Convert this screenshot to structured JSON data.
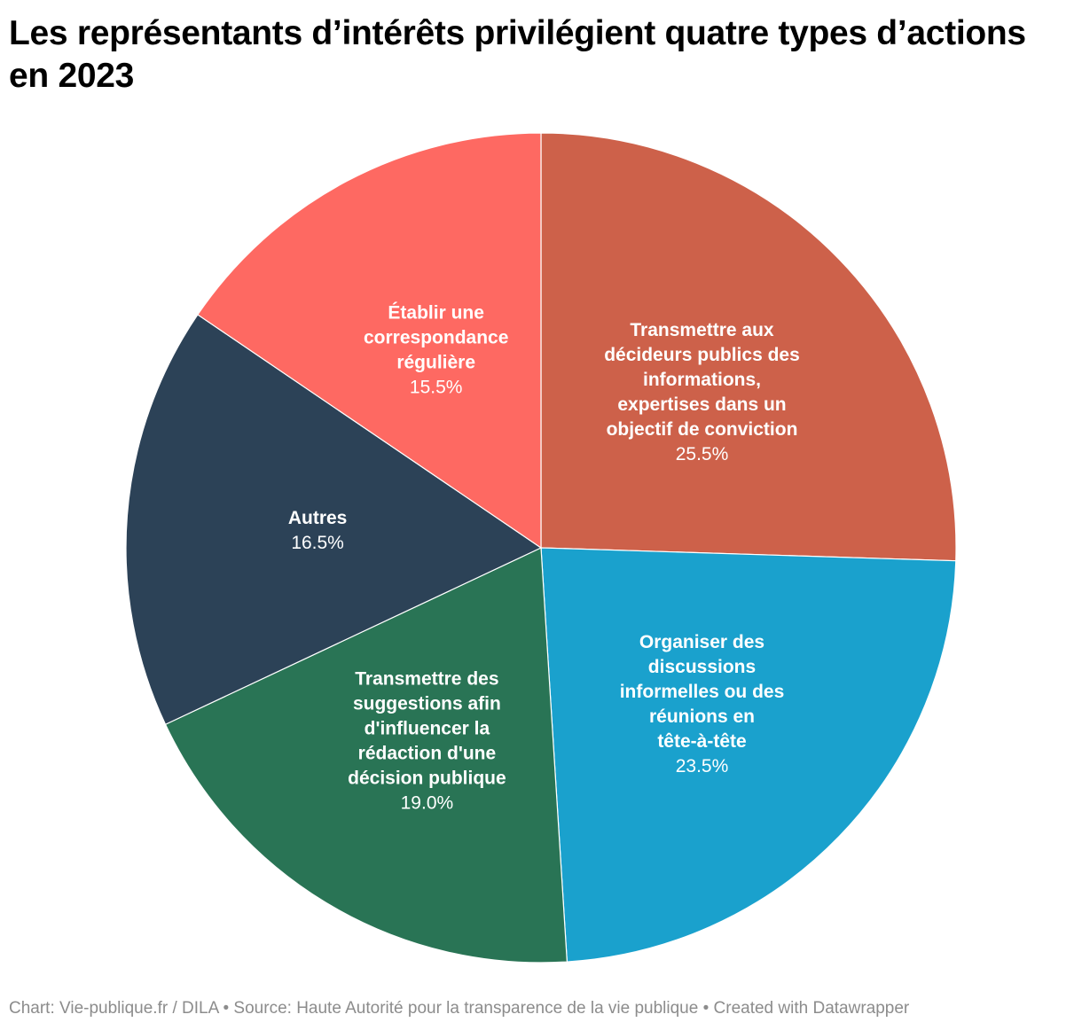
{
  "title": "Les représentants d’intérêts privilégient quatre types d’actions en 2023",
  "footer": "Chart: Vie-publique.fr / DILA • Source: Haute Autorité pour la transparence de la vie publique • Created with Datawrapper",
  "chart_data": {
    "type": "pie",
    "title": "Les représentants d’intérêts privilégient quatre types d’actions en 2023",
    "start_angle_deg": 0,
    "direction": "clockwise",
    "slices": [
      {
        "label": "Transmettre aux décideurs publics des informations, expertises dans un objectif de conviction",
        "label_lines": [
          "Transmettre aux",
          "décideurs publics des",
          "informations,",
          "expertises dans un",
          "objectif de conviction"
        ],
        "value": 25.5,
        "value_label": "25.5%",
        "color": "#cd614a"
      },
      {
        "label": "Organiser des discussions informelles ou des réunions en tête-à-tête",
        "label_lines": [
          "Organiser des",
          "discussions",
          "informelles ou des",
          "réunions en",
          "tête-à-tête"
        ],
        "value": 23.5,
        "value_label": "23.5%",
        "color": "#1aa1cd"
      },
      {
        "label": "Transmettre des suggestions afin d'influencer la rédaction d'une décision publique",
        "label_lines": [
          "Transmettre des",
          "suggestions afin",
          "d'influencer la",
          "rédaction d'une",
          "décision publique"
        ],
        "value": 19.0,
        "value_label": "19.0%",
        "color": "#297455"
      },
      {
        "label": "Autres",
        "label_lines": [
          "Autres"
        ],
        "value": 16.5,
        "value_label": "16.5%",
        "color": "#2c4257"
      },
      {
        "label": "Établir une correspondance régulière",
        "label_lines": [
          "Établir une",
          "correspondance",
          "régulière"
        ],
        "value": 15.5,
        "value_label": "15.5%",
        "color": "#fe6962"
      }
    ]
  }
}
